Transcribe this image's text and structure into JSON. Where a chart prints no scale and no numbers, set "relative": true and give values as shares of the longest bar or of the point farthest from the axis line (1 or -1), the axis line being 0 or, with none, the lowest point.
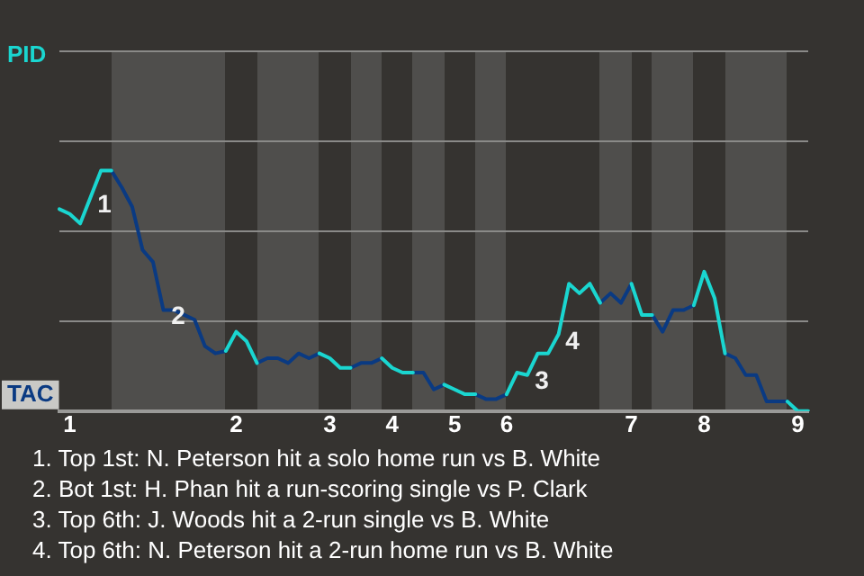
{
  "chart_data": {
    "type": "line",
    "relative": true,
    "categories": [
      null,
      "1",
      null,
      null,
      null,
      null,
      null,
      null,
      null,
      null,
      null,
      null,
      null,
      null,
      null,
      null,
      null,
      "2",
      null,
      null,
      null,
      null,
      null,
      null,
      null,
      null,
      "3",
      null,
      null,
      null,
      null,
      null,
      "4",
      null,
      null,
      null,
      null,
      null,
      "5",
      null,
      null,
      null,
      null,
      "6",
      null,
      null,
      null,
      null,
      null,
      null,
      null,
      null,
      null,
      null,
      null,
      "7",
      null,
      null,
      null,
      null,
      null,
      null,
      "8",
      null,
      null,
      null,
      null,
      null,
      null,
      null,
      null,
      "9",
      null
    ],
    "legend": "left",
    "marker": "none",
    "line_style": "solid",
    "series": [
      {
        "name": "PID",
        "color": "#1ad6d0",
        "values": [
          0.84,
          0.82,
          0.78,
          0.89,
          1,
          1,
          null,
          null,
          null,
          null,
          null,
          null,
          null,
          null,
          null,
          null,
          0.25,
          0.33,
          0.29,
          0.2,
          null,
          null,
          null,
          null,
          null,
          0.24,
          0.22,
          0.18,
          0.18,
          null,
          null,
          0.22,
          0.18,
          0.16,
          0.16,
          null,
          null,
          0.11,
          0.09,
          0.07,
          0.07,
          null,
          null,
          0.07,
          0.16,
          0.15,
          0.24,
          0.24,
          0.32,
          0.53,
          0.49,
          0.53,
          0.45,
          null,
          null,
          0.53,
          0.4,
          0.4,
          null,
          null,
          null,
          0.44,
          0.58,
          0.47,
          0.24,
          null,
          null,
          null,
          null,
          null,
          0.04,
          0,
          0
        ]
      },
      {
        "name": "TAC",
        "color": "#0a3a82",
        "values": [
          null,
          null,
          null,
          null,
          null,
          1,
          0.93,
          0.85,
          0.67,
          0.62,
          0.42,
          0.42,
          0.4,
          0.38,
          0.27,
          0.24,
          0.25,
          null,
          null,
          0.2,
          0.22,
          0.22,
          0.2,
          0.24,
          0.22,
          0.24,
          null,
          null,
          0.18,
          0.2,
          0.2,
          0.22,
          null,
          null,
          0.16,
          0.16,
          0.09,
          0.11,
          null,
          null,
          0.07,
          0.05,
          0.05,
          0.07,
          null,
          null,
          null,
          null,
          null,
          null,
          null,
          null,
          0.45,
          0.49,
          0.45,
          0.53,
          null,
          0.4,
          0.33,
          0.42,
          0.42,
          0.44,
          null,
          null,
          0.24,
          0.22,
          0.15,
          0.15,
          0.04,
          0.04,
          0.04,
          null,
          null
        ]
      }
    ],
    "annotations": [
      "1",
      "2",
      "3",
      "4",
      "1. Top 1st: N. Peterson hit a solo home run vs B. White",
      "2. Bot 1st: H. Phan hit a run-scoring single vs P. Clark",
      "3. Top 6th: J. Woods hit a 2-run single vs B. White",
      "4. Top 6th: N. Peterson hit a 2-run home run vs B. White"
    ]
  }
}
